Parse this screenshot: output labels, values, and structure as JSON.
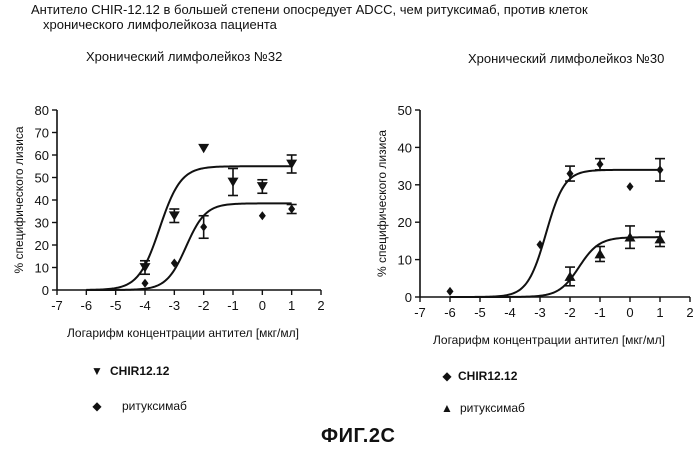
{
  "caption": {
    "line1": "Антитело CHIR-12.12 в большей степени опосредует ADCC, чем ритуксимаб, против клеток",
    "line2": "хронического лимфолейкоза пациента"
  },
  "figure_label": "ФИГ.2С",
  "colors": {
    "ink": "#111111",
    "background": "#ffffff"
  },
  "chart_data": [
    {
      "type": "scatter",
      "title": "Хронический лимфолейкоз   №32",
      "xlabel": "Логарифм концентрации антител [мкг/мл]",
      "ylabel": "% специфического лизиса",
      "xlim": [
        -7,
        2
      ],
      "ylim": [
        0,
        80
      ],
      "xticks": [
        -7,
        -6,
        -5,
        -4,
        -3,
        -2,
        -1,
        0,
        1,
        2
      ],
      "yticks": [
        0,
        10,
        20,
        30,
        40,
        50,
        60,
        70,
        80
      ],
      "fit_curves": true,
      "series": [
        {
          "name": "CHIR12.12",
          "marker": "triangle-down",
          "points": [
            {
              "x": -4,
              "y": 10,
              "err": 3
            },
            {
              "x": -3,
              "y": 33,
              "err": 3
            },
            {
              "x": -2,
              "y": 63,
              "err": 0
            },
            {
              "x": -1,
              "y": 48,
              "err": 6
            },
            {
              "x": 0,
              "y": 46,
              "err": 3
            },
            {
              "x": 1,
              "y": 56,
              "err": 4
            }
          ],
          "fit": {
            "bottom": 0,
            "top": 55,
            "logEC50": -3.5,
            "hill": 1.2
          }
        },
        {
          "name": "ритуксимаб",
          "marker": "diamond",
          "points": [
            {
              "x": -4,
              "y": 3,
              "err": 0
            },
            {
              "x": -3,
              "y": 12,
              "err": 0
            },
            {
              "x": -2,
              "y": 28,
              "err": 5
            },
            {
              "x": 0,
              "y": 33,
              "err": 0
            },
            {
              "x": 1,
              "y": 36,
              "err": 2
            }
          ],
          "fit": {
            "bottom": 0,
            "top": 38.5,
            "logEC50": -2.6,
            "hill": 1.3
          }
        }
      ],
      "legend": [
        {
          "marker": "triangle-down",
          "label": "CHIR12.12",
          "bold": true
        },
        {
          "marker": "diamond",
          "label": "ритуксимаб",
          "bold": false
        }
      ]
    },
    {
      "type": "scatter",
      "title": "Хронический лимфолейкоз №30",
      "xlabel": "Логарифм концентрации антител [мкг/мл]",
      "ylabel": "% специфического лизиса",
      "xlim": [
        -7,
        2
      ],
      "ylim": [
        0,
        50
      ],
      "xticks": [
        -7,
        -6,
        -5,
        -4,
        -3,
        -2,
        -1,
        0,
        1,
        2
      ],
      "yticks": [
        0,
        10,
        20,
        30,
        40,
        50
      ],
      "fit_curves": true,
      "series": [
        {
          "name": "CHIR12.12",
          "marker": "diamond",
          "points": [
            {
              "x": -6,
              "y": 1.5,
              "err": 0
            },
            {
              "x": -3,
              "y": 14,
              "err": 0
            },
            {
              "x": -2,
              "y": 33,
              "err": 2
            },
            {
              "x": -1,
              "y": 35.5,
              "err": 1.5
            },
            {
              "x": 0,
              "y": 29.5,
              "err": 0
            },
            {
              "x": 1,
              "y": 34,
              "err": 3
            }
          ],
          "fit": {
            "bottom": 0,
            "top": 34,
            "logEC50": -2.8,
            "hill": 1.4
          }
        },
        {
          "name": "ритуксимаб",
          "marker": "triangle-up",
          "points": [
            {
              "x": -2,
              "y": 5.5,
              "err": 2.5
            },
            {
              "x": -1,
              "y": 11.5,
              "err": 2
            },
            {
              "x": 0,
              "y": 16,
              "err": 3
            },
            {
              "x": 1,
              "y": 15.5,
              "err": 2
            }
          ],
          "fit": {
            "bottom": 0,
            "top": 16,
            "logEC50": -1.7,
            "hill": 1.3
          }
        }
      ],
      "legend": [
        {
          "marker": "diamond",
          "label": "CHIR12.12",
          "bold": true
        },
        {
          "marker": "triangle-up",
          "label": "ритуксимаб",
          "bold": false
        }
      ]
    }
  ]
}
